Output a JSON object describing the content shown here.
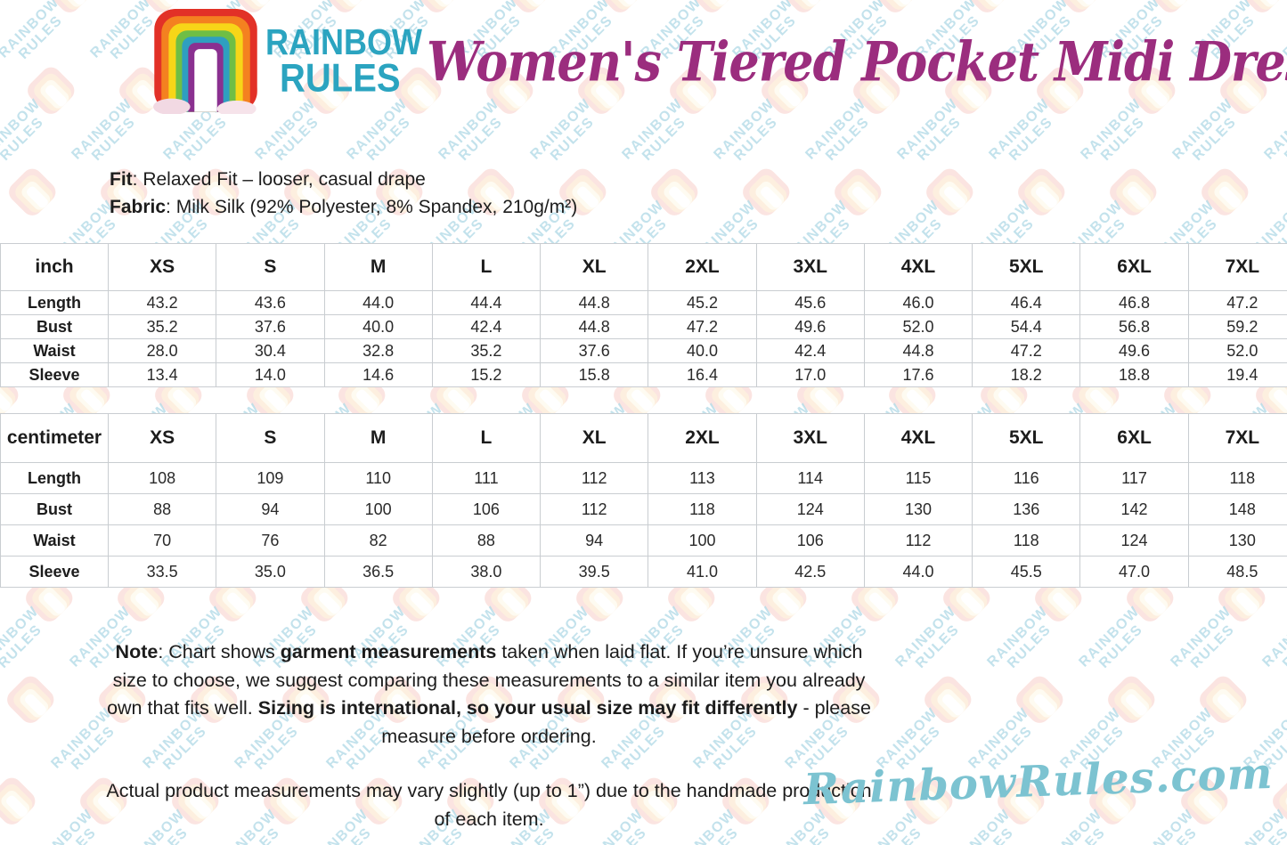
{
  "brand": {
    "name_line1": "RAINBOW",
    "name_line2": "RULES"
  },
  "title": "Women's Tiered Pocket Midi Dress",
  "product_info": {
    "fit_label": "Fit",
    "fit_value": ": Relaxed Fit – looser, casual drape",
    "fabric_label": "Fabric",
    "fabric_value": ": Milk Silk (92% Polyester, 8% Spandex, 210g/m²)"
  },
  "size_tables": [
    {
      "unit_label": "inch",
      "sizes": [
        "XS",
        "S",
        "M",
        "L",
        "XL",
        "2XL",
        "3XL",
        "4XL",
        "5XL",
        "6XL",
        "7XL"
      ],
      "rows": [
        {
          "label": "Length",
          "values": [
            "43.2",
            "43.6",
            "44.0",
            "44.4",
            "44.8",
            "45.2",
            "45.6",
            "46.0",
            "46.4",
            "46.8",
            "47.2"
          ]
        },
        {
          "label": "Bust",
          "values": [
            "35.2",
            "37.6",
            "40.0",
            "42.4",
            "44.8",
            "47.2",
            "49.6",
            "52.0",
            "54.4",
            "56.8",
            "59.2"
          ]
        },
        {
          "label": "Waist",
          "values": [
            "28.0",
            "30.4",
            "32.8",
            "35.2",
            "37.6",
            "40.0",
            "42.4",
            "44.8",
            "47.2",
            "49.6",
            "52.0"
          ]
        },
        {
          "label": "Sleeve",
          "values": [
            "13.4",
            "14.0",
            "14.6",
            "15.2",
            "15.8",
            "16.4",
            "17.0",
            "17.6",
            "18.2",
            "18.8",
            "19.4"
          ]
        }
      ]
    },
    {
      "unit_label": "centimeter",
      "sizes": [
        "XS",
        "S",
        "M",
        "L",
        "XL",
        "2XL",
        "3XL",
        "4XL",
        "5XL",
        "6XL",
        "7XL"
      ],
      "rows": [
        {
          "label": "Length",
          "values": [
            "108",
            "109",
            "110",
            "111",
            "112",
            "113",
            "114",
            "115",
            "116",
            "117",
            "118"
          ]
        },
        {
          "label": "Bust",
          "values": [
            "88",
            "94",
            "100",
            "106",
            "112",
            "118",
            "124",
            "130",
            "136",
            "142",
            "148"
          ]
        },
        {
          "label": "Waist",
          "values": [
            "70",
            "76",
            "82",
            "88",
            "94",
            "100",
            "106",
            "112",
            "118",
            "124",
            "130"
          ]
        },
        {
          "label": "Sleeve",
          "values": [
            "33.5",
            "35.0",
            "36.5",
            "38.0",
            "39.5",
            "41.0",
            "42.5",
            "44.0",
            "45.5",
            "47.0",
            "48.5"
          ]
        }
      ]
    }
  ],
  "note": {
    "segments": [
      {
        "text": "Note",
        "bold": true
      },
      {
        "text": ": Chart shows ",
        "bold": false
      },
      {
        "text": "garment measurements",
        "bold": true
      },
      {
        "text": " taken when laid flat. If you’re unsure which size to choose, we suggest comparing these measurements to a similar item you already own that fits well. ",
        "bold": false
      },
      {
        "text": "Sizing is international, so your usual size may fit differently",
        "bold": true
      },
      {
        "text": " - please measure before ordering.",
        "bold": false
      }
    ]
  },
  "disclaimer": "Actual product measurements may vary slightly (up to 1”) due to the handmade production of each item.",
  "footer": {
    "website": "RainbowRules.com"
  },
  "watermark": {
    "line1": "RAINBOW",
    "line2": "RULES"
  },
  "colors": {
    "title_magenta": "#9b2d7e",
    "brand_teal": "#2ba4c0",
    "footer_teal": "#7cc3d1",
    "watermark_teal": "#b5dce8",
    "table_border": "#c9cdd1",
    "text": "#1c1c1c"
  }
}
